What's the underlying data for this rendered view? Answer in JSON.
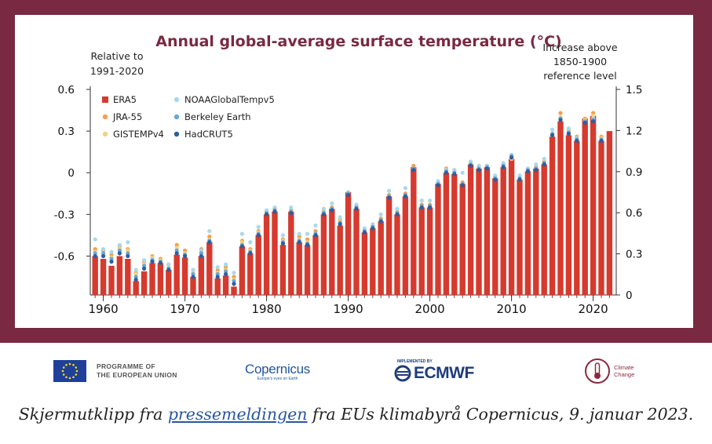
{
  "chart_data": {
    "type": "bar",
    "title": "Annual global-average surface temperature (°C)",
    "left_axis_label": [
      "Relative to",
      "1991-2020"
    ],
    "right_axis_label": [
      "Increase above",
      "1850-1900",
      "reference level"
    ],
    "ylim_left": [
      -0.88,
      0.6
    ],
    "ylim_right": [
      0,
      1.5
    ],
    "yticks_left": [
      "0.6",
      "0.3",
      "0",
      "-0.3",
      "-0.6"
    ],
    "yticks_right": [
      "1.5",
      "1.2",
      "0.9",
      "0.6",
      "0.3",
      "0"
    ],
    "xticks": [
      "1960",
      "1970",
      "1980",
      "1990",
      "2000",
      "2010",
      "2020"
    ],
    "years": [
      1959,
      1960,
      1961,
      1962,
      1963,
      1964,
      1965,
      1966,
      1967,
      1968,
      1969,
      1970,
      1971,
      1972,
      1973,
      1974,
      1975,
      1976,
      1977,
      1978,
      1979,
      1980,
      1981,
      1982,
      1983,
      1984,
      1985,
      1986,
      1987,
      1988,
      1989,
      1990,
      1991,
      1992,
      1993,
      1994,
      1995,
      1996,
      1997,
      1998,
      1999,
      2000,
      2001,
      2002,
      2003,
      2004,
      2005,
      2006,
      2007,
      2008,
      2009,
      2010,
      2011,
      2012,
      2013,
      2014,
      2015,
      2016,
      2017,
      2018,
      2019,
      2020,
      2021,
      2022
    ],
    "series": [
      {
        "name": "ERA5",
        "color": "#d63a2e",
        "marker": "bar",
        "values": [
          -0.6,
          -0.62,
          -0.67,
          -0.6,
          -0.62,
          -0.78,
          -0.71,
          -0.65,
          -0.65,
          -0.7,
          -0.59,
          -0.61,
          -0.75,
          -0.6,
          -0.5,
          -0.76,
          -0.74,
          -0.82,
          -0.53,
          -0.58,
          -0.45,
          -0.3,
          -0.28,
          -0.52,
          -0.28,
          -0.5,
          -0.52,
          -0.45,
          -0.3,
          -0.26,
          -0.38,
          -0.14,
          -0.26,
          -0.43,
          -0.4,
          -0.35,
          -0.17,
          -0.3,
          -0.17,
          0.04,
          -0.25,
          -0.25,
          -0.08,
          0.0,
          -0.01,
          -0.08,
          0.06,
          0.03,
          0.04,
          -0.04,
          0.04,
          0.1,
          -0.05,
          0.01,
          0.03,
          0.06,
          0.26,
          0.37,
          0.27,
          0.23,
          0.39,
          0.41,
          0.23,
          0.3
        ]
      },
      {
        "name": "JRA-55",
        "color": "#f2a04a",
        "marker": "dot",
        "values": [
          -0.55,
          -0.56,
          -0.59,
          -0.53,
          -0.55,
          -0.72,
          -0.64,
          -0.6,
          -0.62,
          -0.66,
          -0.52,
          -0.56,
          -0.7,
          -0.55,
          -0.46,
          -0.7,
          -0.68,
          -0.75,
          -0.49,
          -0.55,
          -0.42,
          -0.28,
          -0.26,
          -0.48,
          -0.27,
          -0.46,
          -0.48,
          -0.42,
          -0.28,
          -0.25,
          -0.34,
          -0.14,
          -0.24,
          -0.41,
          -0.38,
          -0.33,
          -0.16,
          -0.28,
          -0.15,
          0.05,
          -0.23,
          -0.23,
          -0.07,
          0.03,
          0.02,
          -0.07,
          0.08,
          0.05,
          0.05,
          -0.03,
          0.06,
          0.11,
          -0.04,
          0.03,
          0.04,
          0.08,
          0.28,
          0.43,
          0.31,
          0.26,
          0.39,
          0.43,
          0.26,
          0.3
        ]
      },
      {
        "name": "GISTEMPv4",
        "color": "#f4d27a",
        "marker": "dot",
        "values": [
          -0.57,
          -0.58,
          -0.61,
          -0.55,
          -0.56,
          -0.73,
          -0.66,
          -0.61,
          -0.63,
          -0.68,
          -0.54,
          -0.58,
          -0.72,
          -0.57,
          -0.48,
          -0.72,
          -0.7,
          -0.77,
          -0.5,
          -0.56,
          -0.43,
          -0.29,
          -0.27,
          -0.49,
          -0.28,
          -0.48,
          -0.5,
          -0.44,
          -0.29,
          -0.26,
          -0.35,
          -0.15,
          -0.25,
          -0.42,
          -0.39,
          -0.34,
          -0.17,
          -0.29,
          -0.16,
          0.03,
          -0.24,
          -0.24,
          -0.08,
          0.02,
          0.01,
          -0.08,
          0.07,
          0.04,
          0.04,
          -0.04,
          0.05,
          0.1,
          -0.05,
          0.02,
          0.03,
          0.07,
          0.27,
          0.4,
          0.3,
          0.24,
          0.38,
          0.41,
          0.25,
          0.3
        ]
      },
      {
        "name": "NOAAGlobalTempv5",
        "color": "#a9d9ea",
        "marker": "dot",
        "values": [
          -0.48,
          -0.55,
          -0.57,
          -0.52,
          -0.5,
          -0.7,
          -0.63,
          -0.62,
          -0.65,
          -0.66,
          -0.56,
          -0.59,
          -0.7,
          -0.56,
          -0.42,
          -0.68,
          -0.66,
          -0.72,
          -0.44,
          -0.5,
          -0.39,
          -0.27,
          -0.25,
          -0.45,
          -0.25,
          -0.44,
          -0.44,
          -0.38,
          -0.26,
          -0.22,
          -0.32,
          -0.14,
          -0.23,
          -0.4,
          -0.37,
          -0.3,
          -0.13,
          -0.26,
          -0.11,
          0.03,
          -0.2,
          -0.2,
          -0.06,
          0.02,
          0.02,
          0.0,
          0.08,
          0.05,
          0.05,
          -0.02,
          0.07,
          0.13,
          -0.02,
          0.03,
          0.06,
          0.1,
          0.31,
          0.39,
          0.32,
          0.25,
          0.37,
          0.39,
          0.24,
          0.3
        ]
      },
      {
        "name": "Berkeley Earth",
        "color": "#6aa6d6",
        "marker": "dot",
        "values": [
          -0.58,
          -0.58,
          -0.62,
          -0.56,
          -0.58,
          -0.75,
          -0.67,
          -0.63,
          -0.64,
          -0.69,
          -0.56,
          -0.59,
          -0.73,
          -0.58,
          -0.49,
          -0.73,
          -0.71,
          -0.78,
          -0.52,
          -0.57,
          -0.44,
          -0.29,
          -0.27,
          -0.5,
          -0.28,
          -0.49,
          -0.51,
          -0.44,
          -0.29,
          -0.26,
          -0.36,
          -0.15,
          -0.25,
          -0.42,
          -0.39,
          -0.34,
          -0.17,
          -0.29,
          -0.16,
          0.03,
          -0.24,
          -0.24,
          -0.08,
          0.01,
          0.0,
          -0.08,
          0.06,
          0.03,
          0.04,
          -0.04,
          0.05,
          0.12,
          -0.04,
          0.02,
          0.03,
          0.07,
          0.28,
          0.39,
          0.29,
          0.24,
          0.37,
          0.38,
          0.24,
          0.3
        ]
      },
      {
        "name": "HadCRUT5",
        "color": "#2c5f9e",
        "marker": "dot",
        "values": [
          -0.6,
          -0.6,
          -0.64,
          -0.58,
          -0.6,
          -0.77,
          -0.69,
          -0.64,
          -0.65,
          -0.7,
          -0.58,
          -0.6,
          -0.75,
          -0.6,
          -0.5,
          -0.75,
          -0.73,
          -0.8,
          -0.53,
          -0.58,
          -0.45,
          -0.3,
          -0.28,
          -0.51,
          -0.29,
          -0.5,
          -0.52,
          -0.45,
          -0.3,
          -0.27,
          -0.37,
          -0.16,
          -0.26,
          -0.43,
          -0.4,
          -0.35,
          -0.18,
          -0.3,
          -0.17,
          0.02,
          -0.25,
          -0.25,
          -0.09,
          0.0,
          -0.01,
          -0.09,
          0.05,
          0.02,
          0.03,
          -0.05,
          0.04,
          0.11,
          -0.05,
          0.01,
          0.02,
          0.06,
          0.27,
          0.38,
          0.28,
          0.23,
          0.36,
          0.37,
          0.23,
          0.3
        ]
      }
    ]
  },
  "logos": {
    "eu_text": [
      "PROGRAMME OF",
      "THE EUROPEAN UNION"
    ],
    "copernicus_name": "Copernicus",
    "copernicus_sub": "Europe's eyes on Earth",
    "ecmwf_sub": "IMPLEMENTED BY",
    "ecmwf_name": "ECMWF",
    "climate_text": [
      "Climate",
      "Change"
    ]
  },
  "caption": {
    "before": "Skjermutklipp fra ",
    "link": "pressemeldingen",
    "after": " fra EUs klimabyrå Copernicus, 9. januar 2023."
  }
}
